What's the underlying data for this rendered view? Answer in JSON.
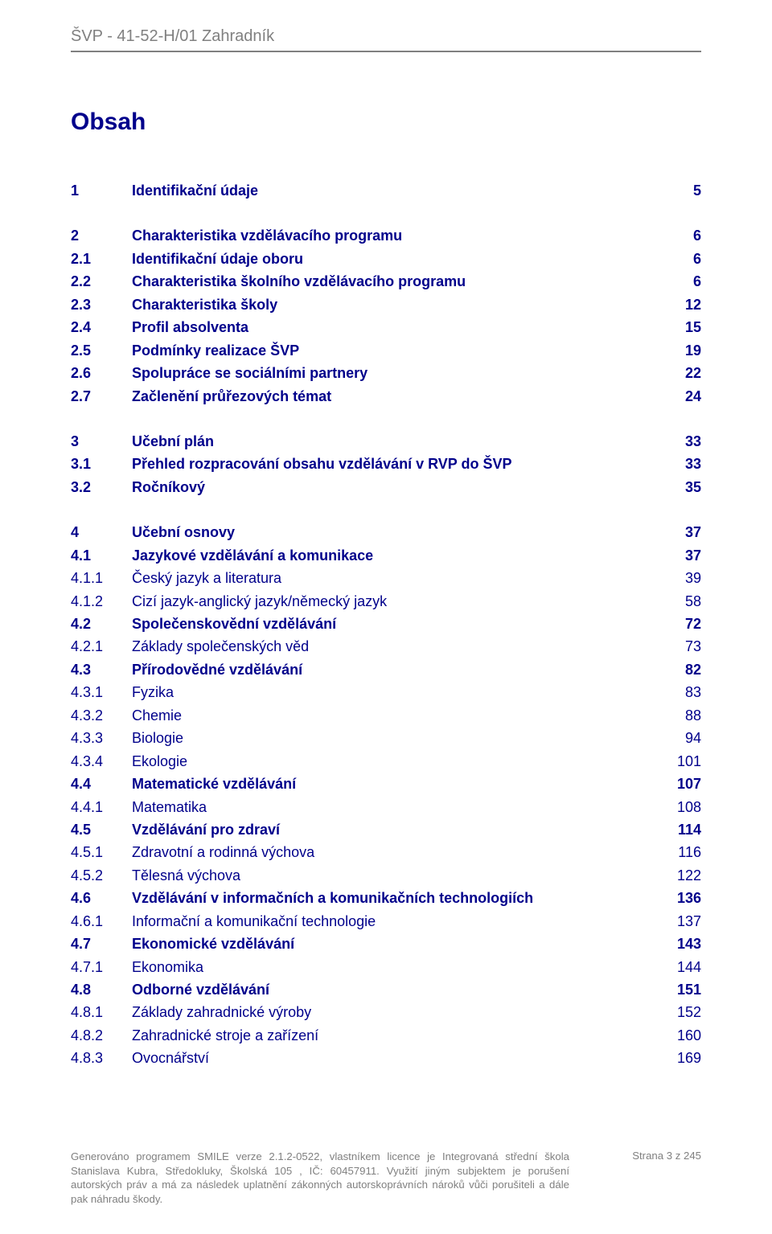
{
  "header": {
    "title": "ŠVP - 41-52-H/01 Zahradník"
  },
  "toc_heading": "Obsah",
  "colors": {
    "header_gray": "#808080",
    "link_blue": "#00008b",
    "page_bg": "#ffffff",
    "body_text": "#111111"
  },
  "fonts": {
    "family": "Arial",
    "title_size_pt": 22,
    "row_size_pt": 13,
    "footer_size_pt": 10
  },
  "toc": [
    {
      "type": "block",
      "items": [
        {
          "num": "1",
          "title": "Identifikační údaje",
          "page": "5",
          "bold": true
        }
      ]
    },
    {
      "type": "block",
      "items": [
        {
          "num": "2",
          "title": "Charakteristika vzdělávacího programu",
          "page": "6",
          "bold": true
        },
        {
          "num": "2.1",
          "title": "Identifikační údaje oboru",
          "page": "6",
          "bold": true
        },
        {
          "num": "2.2",
          "title": "Charakteristika školního vzdělávacího programu",
          "page": "6",
          "bold": true
        },
        {
          "num": "2.3",
          "title": "Charakteristika školy",
          "page": "12",
          "bold": true
        },
        {
          "num": "2.4",
          "title": "Profil absolventa",
          "page": "15",
          "bold": true
        },
        {
          "num": "2.5",
          "title": "Podmínky realizace ŠVP",
          "page": "19",
          "bold": true
        },
        {
          "num": "2.6",
          "title": "Spolupráce se sociálními partnery",
          "page": "22",
          "bold": true
        },
        {
          "num": "2.7",
          "title": "Začlenění průřezových témat",
          "page": "24",
          "bold": true
        }
      ]
    },
    {
      "type": "block",
      "items": [
        {
          "num": "3",
          "title": "Učební plán",
          "page": "33",
          "bold": true
        },
        {
          "num": "3.1",
          "title": "Přehled rozpracování obsahu vzdělávání v RVP do ŠVP",
          "page": "33",
          "bold": true
        },
        {
          "num": "3.2",
          "title": "Ročníkový",
          "page": "35",
          "bold": true
        }
      ]
    },
    {
      "type": "block",
      "items": [
        {
          "num": "4",
          "title": "Učební osnovy",
          "page": "37",
          "bold": true
        },
        {
          "num": "4.1",
          "title": "Jazykové vzdělávání a komunikace",
          "page": "37",
          "bold": true
        },
        {
          "num": "4.1.1",
          "title": "Český jazyk a literatura",
          "page": "39",
          "bold": false
        },
        {
          "num": "4.1.2",
          "title": "Cizí jazyk-anglický jazyk/německý jazyk",
          "page": "58",
          "bold": false
        },
        {
          "num": "4.2",
          "title": "Společenskovědní vzdělávání",
          "page": "72",
          "bold": true
        },
        {
          "num": "4.2.1",
          "title": "Základy společenských věd",
          "page": "73",
          "bold": false
        },
        {
          "num": "4.3",
          "title": "Přírodovědné vzdělávání",
          "page": "82",
          "bold": true
        },
        {
          "num": "4.3.1",
          "title": "Fyzika",
          "page": "83",
          "bold": false
        },
        {
          "num": "4.3.2",
          "title": "Chemie",
          "page": "88",
          "bold": false
        },
        {
          "num": "4.3.3",
          "title": "Biologie",
          "page": "94",
          "bold": false
        },
        {
          "num": "4.3.4",
          "title": "Ekologie",
          "page": "101",
          "bold": false
        },
        {
          "num": "4.4",
          "title": "Matematické vzdělávání",
          "page": "107",
          "bold": true
        },
        {
          "num": "4.4.1",
          "title": "Matematika",
          "page": "108",
          "bold": false
        },
        {
          "num": "4.5",
          "title": "Vzdělávání pro zdraví",
          "page": "114",
          "bold": true
        },
        {
          "num": "4.5.1",
          "title": "Zdravotní a rodinná výchova",
          "page": "116",
          "bold": false
        },
        {
          "num": "4.5.2",
          "title": "Tělesná výchova",
          "page": "122",
          "bold": false
        },
        {
          "num": "4.6",
          "title": "Vzdělávání v informačních a komunikačních technologiích",
          "page": "136",
          "bold": true
        },
        {
          "num": "4.6.1",
          "title": "Informační a komunikační technologie",
          "page": "137",
          "bold": false
        },
        {
          "num": "4.7",
          "title": "Ekonomické vzdělávání",
          "page": "143",
          "bold": true
        },
        {
          "num": "4.7.1",
          "title": "Ekonomika",
          "page": "144",
          "bold": false
        },
        {
          "num": "4.8",
          "title": "Odborné vzdělávání",
          "page": "151",
          "bold": true
        },
        {
          "num": "4.8.1",
          "title": "Základy zahradnické výroby",
          "page": "152",
          "bold": false
        },
        {
          "num": "4.8.2",
          "title": "Zahradnické stroje a zařízení",
          "page": "160",
          "bold": false
        },
        {
          "num": "4.8.3",
          "title": "Ovocnářství",
          "page": "169",
          "bold": false
        }
      ]
    }
  ],
  "footer": {
    "left": "Generováno programem SMILE verze 2.1.2-0522, vlastníkem licence je Integrovaná střední škola Stanislava Kubra, Středokluky, Školská 105 , IČ: 60457911.\nVyužití jiným subjektem je porušení autorských práv a má za následek uplatnění zákonných autorskoprávních nároků vůči porušiteli a dále pak náhradu škody.",
    "right": "Strana 3 z 245"
  }
}
